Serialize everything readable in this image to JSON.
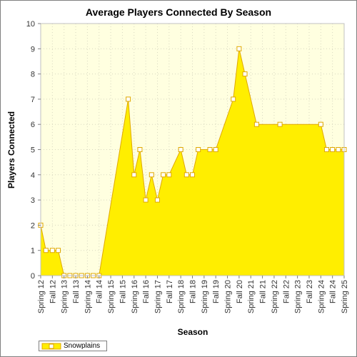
{
  "chart_data": {
    "type": "area",
    "title": "Average Players Connected By Season",
    "xlabel": "Season",
    "ylabel": "Players Connected",
    "ylim": [
      0,
      10
    ],
    "y_ticks": [
      "0",
      "1",
      "2",
      "3",
      "4",
      "5",
      "6",
      "7",
      "8",
      "9",
      "10"
    ],
    "grid": true,
    "legend_position": "bottom-left",
    "colors": {
      "fill": "#ffee00",
      "line": "#e0a800",
      "marker_fill": "#ffffff",
      "plot_bg": "#ffffe0"
    },
    "categories": [
      "Spring 12",
      "Fall 12",
      "Spring 13",
      "Fall 13",
      "Spring 14",
      "Fall 14",
      "Spring 15",
      "Fall 15",
      "Spring 16",
      "Fall 16",
      "Spring 17",
      "Fall 17",
      "Spring 18",
      "Fall 18",
      "Spring 19",
      "Fall 19",
      "Spring 20",
      "Fall 20",
      "Spring 21",
      "Fall 21",
      "Spring 22",
      "Fall 22",
      "Spring 23",
      "Fall 23",
      "Spring 24",
      "Fall 24",
      "Spring 25"
    ],
    "series": [
      {
        "name": "Snowplains",
        "points": [
          {
            "x": 0,
            "y": 2
          },
          {
            "x": 0.45,
            "y": 1
          },
          {
            "x": 1.0,
            "y": 1
          },
          {
            "x": 1.5,
            "y": 1
          },
          {
            "x": 2.0,
            "y": 0
          },
          {
            "x": 2.5,
            "y": 0
          },
          {
            "x": 3.0,
            "y": 0
          },
          {
            "x": 3.5,
            "y": 0
          },
          {
            "x": 4.0,
            "y": 0
          },
          {
            "x": 4.5,
            "y": 0
          },
          {
            "x": 5.0,
            "y": 0
          },
          {
            "x": 7.5,
            "y": 7
          },
          {
            "x": 8.0,
            "y": 4
          },
          {
            "x": 8.5,
            "y": 5
          },
          {
            "x": 9.0,
            "y": 3
          },
          {
            "x": 9.5,
            "y": 4
          },
          {
            "x": 10.0,
            "y": 3
          },
          {
            "x": 10.5,
            "y": 4
          },
          {
            "x": 11.0,
            "y": 4
          },
          {
            "x": 12.0,
            "y": 5
          },
          {
            "x": 12.5,
            "y": 4
          },
          {
            "x": 13.0,
            "y": 4
          },
          {
            "x": 13.5,
            "y": 5
          },
          {
            "x": 14.5,
            "y": 5
          },
          {
            "x": 15.0,
            "y": 5
          },
          {
            "x": 16.5,
            "y": 7
          },
          {
            "x": 17.0,
            "y": 9
          },
          {
            "x": 17.5,
            "y": 8
          },
          {
            "x": 18.5,
            "y": 6
          },
          {
            "x": 20.5,
            "y": 6
          },
          {
            "x": 24.0,
            "y": 6
          },
          {
            "x": 24.5,
            "y": 5
          },
          {
            "x": 25.0,
            "y": 5
          },
          {
            "x": 25.5,
            "y": 5
          },
          {
            "x": 26.0,
            "y": 5
          }
        ]
      }
    ]
  }
}
